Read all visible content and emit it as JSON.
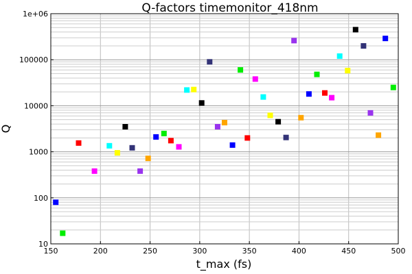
{
  "chart_data": {
    "type": "scatter",
    "title": "Q-factors timemonitor_418nm",
    "xlabel": "t_max (fs)",
    "ylabel": "Q",
    "xlim": [
      150,
      500
    ],
    "ylim": [
      10,
      1000000
    ],
    "yscale": "log",
    "grid": true,
    "legend": "none",
    "x_ticks": [
      "150",
      "200",
      "250",
      "300",
      "350",
      "400",
      "450",
      "500"
    ],
    "y_ticks": [
      "10",
      "100",
      "1000",
      "10000",
      "100000",
      "1e+06"
    ],
    "points": [
      {
        "x": 155,
        "y": 80,
        "color": "#0000ff"
      },
      {
        "x": 162,
        "y": 17,
        "color": "#00ee00"
      },
      {
        "x": 178,
        "y": 1550,
        "color": "#ff0000"
      },
      {
        "x": 194,
        "y": 380,
        "color": "#ff00ff"
      },
      {
        "x": 209,
        "y": 1350,
        "color": "#00ffff"
      },
      {
        "x": 217,
        "y": 950,
        "color": "#ffff00"
      },
      {
        "x": 225,
        "y": 3500,
        "color": "#000000"
      },
      {
        "x": 232,
        "y": 1220,
        "color": "#333377"
      },
      {
        "x": 240,
        "y": 380,
        "color": "#9933ee"
      },
      {
        "x": 248,
        "y": 720,
        "color": "#ffa500"
      },
      {
        "x": 256,
        "y": 2100,
        "color": "#0000ff"
      },
      {
        "x": 264,
        "y": 2500,
        "color": "#00ee00"
      },
      {
        "x": 271,
        "y": 1750,
        "color": "#ff0000"
      },
      {
        "x": 279,
        "y": 1280,
        "color": "#ff00ff"
      },
      {
        "x": 287,
        "y": 22000,
        "color": "#00ffff"
      },
      {
        "x": 294,
        "y": 22500,
        "color": "#ffff00"
      },
      {
        "x": 302,
        "y": 11500,
        "color": "#000000"
      },
      {
        "x": 310,
        "y": 90000,
        "color": "#333377"
      },
      {
        "x": 318,
        "y": 3500,
        "color": "#9933ee"
      },
      {
        "x": 325,
        "y": 4300,
        "color": "#ffa500"
      },
      {
        "x": 333,
        "y": 1400,
        "color": "#0000ff"
      },
      {
        "x": 341,
        "y": 60000,
        "color": "#00ee00"
      },
      {
        "x": 348,
        "y": 2000,
        "color": "#ff0000"
      },
      {
        "x": 356,
        "y": 38000,
        "color": "#ff00ff"
      },
      {
        "x": 364,
        "y": 15500,
        "color": "#00ffff"
      },
      {
        "x": 371,
        "y": 6200,
        "color": "#ffff00"
      },
      {
        "x": 379,
        "y": 4500,
        "color": "#000000"
      },
      {
        "x": 387,
        "y": 2050,
        "color": "#333377"
      },
      {
        "x": 395,
        "y": 260000,
        "color": "#9933ee"
      },
      {
        "x": 402,
        "y": 5500,
        "color": "#ffa500"
      },
      {
        "x": 410,
        "y": 18000,
        "color": "#0000ff"
      },
      {
        "x": 418,
        "y": 48000,
        "color": "#00ee00"
      },
      {
        "x": 426,
        "y": 19000,
        "color": "#ff0000"
      },
      {
        "x": 433,
        "y": 15000,
        "color": "#ff00ff"
      },
      {
        "x": 441,
        "y": 120000,
        "color": "#00ffff"
      },
      {
        "x": 449,
        "y": 58000,
        "color": "#ffff00"
      },
      {
        "x": 457,
        "y": 450000,
        "color": "#000000"
      },
      {
        "x": 465,
        "y": 200000,
        "color": "#333377"
      },
      {
        "x": 472,
        "y": 7000,
        "color": "#9933ee"
      },
      {
        "x": 480,
        "y": 2300,
        "color": "#ffa500"
      },
      {
        "x": 487,
        "y": 290000,
        "color": "#0000ff"
      },
      {
        "x": 495,
        "y": 25000,
        "color": "#00ee00"
      }
    ]
  }
}
